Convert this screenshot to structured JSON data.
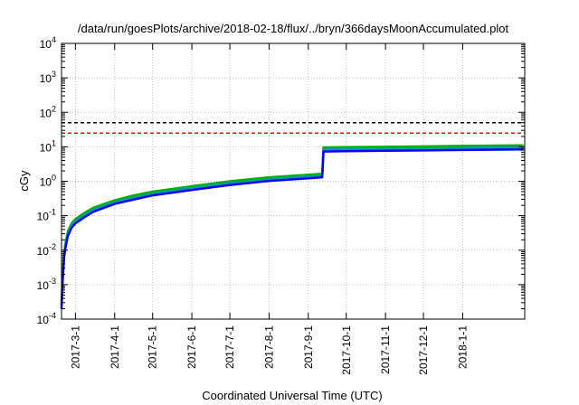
{
  "chart_data": {
    "type": "line",
    "title": "/data/run/goesPlots/archive/2018-02-18/flux/../bryn/366daysMoonAccumulated.plot",
    "xlabel": "Coordinated Universal Time (UTC)",
    "ylabel": "cGy",
    "yscale": "log",
    "ylim": [
      0.0001,
      10000
    ],
    "xlim": [
      "2017-02-18",
      "2018-02-18"
    ],
    "x_ticks": [
      "2017-3-1",
      "2017-4-1",
      "2017-5-1",
      "2017-6-1",
      "2017-7-1",
      "2017-8-1",
      "2017-9-1",
      "2017-10-1",
      "2017-11-1",
      "2017-12-1",
      "2018-1-1"
    ],
    "y_ticks": [
      {
        "base": "10",
        "exp": "-4"
      },
      {
        "base": "10",
        "exp": "-3"
      },
      {
        "base": "10",
        "exp": "-2"
      },
      {
        "base": "10",
        "exp": "-1"
      },
      {
        "base": "10",
        "exp": "0"
      },
      {
        "base": "10",
        "exp": "1"
      },
      {
        "base": "10",
        "exp": "2"
      },
      {
        "base": "10",
        "exp": "3"
      },
      {
        "base": "10",
        "exp": "4"
      }
    ],
    "grid": true,
    "reference_lines": [
      {
        "y": 50,
        "color": "#000000",
        "style": "dashed"
      },
      {
        "y": 25,
        "color": "#ff0000",
        "style": "dashed"
      }
    ],
    "series": [
      {
        "color": "#00b000",
        "x": [
          "2017-02-18",
          "2017-02-19",
          "2017-02-20",
          "2017-02-21",
          "2017-02-23",
          "2017-02-26",
          "2017-03-01",
          "2017-03-08",
          "2017-03-15",
          "2017-04-01",
          "2017-04-15",
          "2017-05-01",
          "2017-06-01",
          "2017-07-01",
          "2017-08-01",
          "2017-09-01",
          "2017-09-12",
          "2017-09-13",
          "2017-10-01",
          "2017-11-01",
          "2017-12-01",
          "2018-01-01",
          "2018-02-18"
        ],
        "values": [
          0.0003,
          0.002,
          0.008,
          0.015,
          0.035,
          0.06,
          0.08,
          0.12,
          0.17,
          0.28,
          0.38,
          0.5,
          0.72,
          1.0,
          1.3,
          1.55,
          1.65,
          9.6,
          9.75,
          10.0,
          10.3,
          10.6,
          11.0
        ]
      },
      {
        "color": "#00a0a0",
        "x": [
          "2017-02-18",
          "2017-02-19",
          "2017-02-20",
          "2017-02-21",
          "2017-02-23",
          "2017-02-26",
          "2017-03-01",
          "2017-03-08",
          "2017-03-15",
          "2017-04-01",
          "2017-04-15",
          "2017-05-01",
          "2017-06-01",
          "2017-07-01",
          "2017-08-01",
          "2017-09-01",
          "2017-09-12",
          "2017-09-13",
          "2017-10-01",
          "2017-11-01",
          "2017-12-01",
          "2018-01-01",
          "2018-02-18"
        ],
        "values": [
          0.00025,
          0.0018,
          0.007,
          0.013,
          0.03,
          0.052,
          0.07,
          0.105,
          0.15,
          0.25,
          0.33,
          0.44,
          0.64,
          0.88,
          1.15,
          1.38,
          1.45,
          8.4,
          8.55,
          8.8,
          9.0,
          9.3,
          9.6
        ]
      },
      {
        "color": "#0000ff",
        "x": [
          "2017-02-18",
          "2017-02-19",
          "2017-02-20",
          "2017-02-21",
          "2017-02-23",
          "2017-02-26",
          "2017-03-01",
          "2017-03-08",
          "2017-03-15",
          "2017-04-01",
          "2017-04-15",
          "2017-05-01",
          "2017-06-01",
          "2017-07-01",
          "2017-08-01",
          "2017-09-01",
          "2017-09-12",
          "2017-09-13",
          "2017-10-01",
          "2017-11-01",
          "2017-12-01",
          "2018-01-01",
          "2018-02-18"
        ],
        "values": [
          0.0002,
          0.0015,
          0.006,
          0.011,
          0.026,
          0.045,
          0.06,
          0.09,
          0.13,
          0.22,
          0.29,
          0.39,
          0.56,
          0.78,
          1.02,
          1.22,
          1.3,
          7.3,
          7.45,
          7.65,
          7.85,
          8.1,
          8.4
        ]
      }
    ]
  }
}
